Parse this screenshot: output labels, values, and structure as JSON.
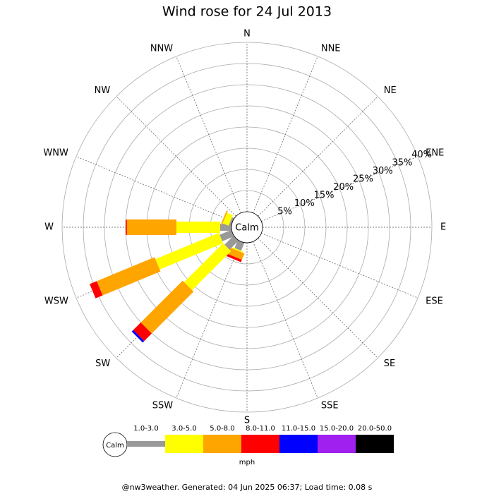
{
  "chart_data": {
    "type": "wind_rose",
    "title": "Wind rose for 24 Jul 2013",
    "directions": [
      "N",
      "NNE",
      "NE",
      "ENE",
      "E",
      "ESE",
      "SE",
      "SSE",
      "S",
      "SSW",
      "SW",
      "WSW",
      "W",
      "WNW",
      "NW",
      "NNW"
    ],
    "calm_label": "Calm",
    "units": "mph",
    "rlim": [
      0,
      40
    ],
    "rticks": [
      {
        "value": 5,
        "label": "5%"
      },
      {
        "value": 10,
        "label": "10%"
      },
      {
        "value": 15,
        "label": "15%"
      },
      {
        "value": 20,
        "label": "20%"
      },
      {
        "value": 25,
        "label": "25%"
      },
      {
        "value": 30,
        "label": "30%"
      },
      {
        "value": 35,
        "label": "35%"
      },
      {
        "value": 40,
        "label": "40%"
      }
    ],
    "series": [
      {
        "name": "1.0-3.0",
        "color": "#999999",
        "values": [
          0,
          0,
          0,
          0,
          0,
          0,
          0,
          0,
          0,
          2,
          3,
          3,
          2.7,
          0.5,
          0,
          0
        ]
      },
      {
        "name": "3.0-5.0",
        "color": "#ffff00",
        "values": [
          0,
          0,
          0,
          0,
          0,
          0,
          0,
          0,
          0,
          0.3,
          13,
          16.2,
          10.3,
          1.5,
          0,
          0
        ]
      },
      {
        "name": "5.0-8.0",
        "color": "#ffa500",
        "values": [
          0,
          0,
          0,
          0,
          0,
          0,
          0,
          0,
          0,
          1.6,
          14,
          14.8,
          11.7,
          0.3,
          0,
          0
        ]
      },
      {
        "name": "8.0-11.0",
        "color": "#ff0000",
        "values": [
          0,
          0,
          0,
          0,
          0,
          0,
          0,
          0,
          0,
          0.6,
          2.5,
          1.8,
          0.3,
          0,
          0,
          0
        ]
      },
      {
        "name": "11.0-15.0",
        "color": "#0000ff",
        "values": [
          0,
          0,
          0,
          0,
          0,
          0,
          0,
          0,
          0,
          0,
          0.5,
          0,
          0,
          0,
          0,
          0
        ]
      },
      {
        "name": "15.0-20.0",
        "color": "#a020f0",
        "values": [
          0,
          0,
          0,
          0,
          0,
          0,
          0,
          0,
          0,
          0,
          0,
          0,
          0,
          0,
          0,
          0
        ]
      },
      {
        "name": "20.0-50.0",
        "color": "#000000",
        "values": [
          0,
          0,
          0,
          0,
          0,
          0,
          0,
          0,
          0,
          0,
          0,
          0,
          0,
          0,
          0,
          0
        ]
      }
    ],
    "footer": "@nw3weather. Generated: 04 Jun 2025 06:37; Load time: 0.08 s"
  }
}
